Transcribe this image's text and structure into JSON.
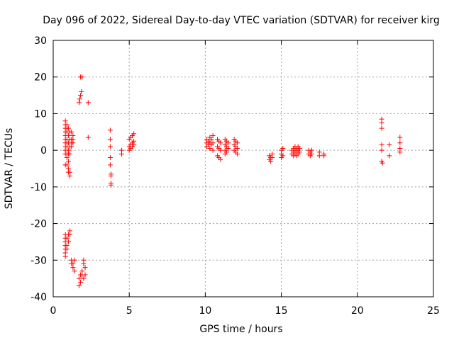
{
  "chart_data": {
    "type": "scatter",
    "title": "Day 096 of 2022, Sidereal Day-to-day VTEC variation (SDTVAR) for receiver kirg",
    "xlabel": "GPS time / hours",
    "ylabel": "SDTVAR / TECUs",
    "xlim": [
      0,
      25
    ],
    "ylim": [
      -40,
      30
    ],
    "xticks": [
      0,
      5,
      10,
      15,
      20,
      25
    ],
    "yticks": [
      -40,
      -30,
      -20,
      -10,
      0,
      10,
      20,
      30
    ],
    "grid": true,
    "marker": "+",
    "color": "#ff0000",
    "series": [
      {
        "name": "SDTVAR",
        "points": [
          [
            0.8,
            8
          ],
          [
            0.8,
            7
          ],
          [
            0.8,
            6
          ],
          [
            0.8,
            5
          ],
          [
            0.8,
            4
          ],
          [
            0.8,
            3
          ],
          [
            0.8,
            2
          ],
          [
            0.8,
            1
          ],
          [
            0.8,
            0
          ],
          [
            0.8,
            -1
          ],
          [
            0.9,
            7
          ],
          [
            0.9,
            6
          ],
          [
            0.9,
            5
          ],
          [
            0.9,
            3
          ],
          [
            0.9,
            2
          ],
          [
            0.9,
            1
          ],
          [
            0.9,
            -1
          ],
          [
            0.9,
            -2
          ],
          [
            1.0,
            6
          ],
          [
            1.0,
            4
          ],
          [
            1.0,
            2
          ],
          [
            1.0,
            0
          ],
          [
            1.0,
            -1
          ],
          [
            1.0,
            -3
          ],
          [
            1.1,
            5
          ],
          [
            1.1,
            3
          ],
          [
            1.1,
            1
          ],
          [
            1.1,
            -1
          ],
          [
            1.2,
            5
          ],
          [
            1.2,
            3
          ],
          [
            1.2,
            2
          ],
          [
            1.2,
            1
          ],
          [
            1.3,
            4
          ],
          [
            1.3,
            3
          ],
          [
            1.3,
            2
          ],
          [
            0.8,
            -4
          ],
          [
            0.9,
            -4
          ],
          [
            1.0,
            -5
          ],
          [
            1.0,
            -6
          ],
          [
            1.1,
            -6
          ],
          [
            1.1,
            -7
          ],
          [
            0.8,
            -23
          ],
          [
            0.8,
            -24
          ],
          [
            0.8,
            -25
          ],
          [
            0.8,
            -26
          ],
          [
            0.8,
            -27
          ],
          [
            0.8,
            -28
          ],
          [
            0.8,
            -29
          ],
          [
            0.9,
            -24
          ],
          [
            0.9,
            -26
          ],
          [
            0.9,
            -27
          ],
          [
            1.0,
            -23
          ],
          [
            1.0,
            -25
          ],
          [
            1.1,
            -22
          ],
          [
            1.1,
            -23
          ],
          [
            1.2,
            -30
          ],
          [
            1.2,
            -31
          ],
          [
            1.3,
            -31
          ],
          [
            1.3,
            -32
          ],
          [
            1.4,
            -30
          ],
          [
            1.4,
            -33
          ],
          [
            1.7,
            13
          ],
          [
            1.75,
            14
          ],
          [
            1.8,
            15
          ],
          [
            1.85,
            16
          ],
          [
            1.8,
            20
          ],
          [
            1.9,
            20
          ],
          [
            1.7,
            -35
          ],
          [
            1.7,
            -37
          ],
          [
            1.8,
            -34
          ],
          [
            1.8,
            -36
          ],
          [
            1.9,
            -33
          ],
          [
            1.9,
            -34
          ],
          [
            2.0,
            -30
          ],
          [
            2.0,
            -31
          ],
          [
            2.0,
            -35
          ],
          [
            2.1,
            -32
          ],
          [
            2.1,
            -34
          ],
          [
            2.3,
            13
          ],
          [
            2.3,
            3.5
          ],
          [
            3.75,
            5.5
          ],
          [
            3.75,
            3
          ],
          [
            3.75,
            1
          ],
          [
            3.75,
            -2
          ],
          [
            3.75,
            -4
          ],
          [
            3.8,
            -6.5
          ],
          [
            3.8,
            -7
          ],
          [
            3.8,
            -9
          ],
          [
            3.8,
            -9.5
          ],
          [
            4.5,
            0
          ],
          [
            4.5,
            -1
          ],
          [
            5.0,
            3
          ],
          [
            5.0,
            1
          ],
          [
            5.0,
            0
          ],
          [
            5.1,
            3.5
          ],
          [
            5.1,
            1.5
          ],
          [
            5.1,
            0.5
          ],
          [
            5.2,
            4
          ],
          [
            5.2,
            2
          ],
          [
            5.2,
            1
          ],
          [
            5.3,
            4.5
          ],
          [
            5.3,
            2.5
          ],
          [
            5.3,
            1.5
          ],
          [
            10.1,
            3
          ],
          [
            10.1,
            2
          ],
          [
            10.1,
            1
          ],
          [
            10.2,
            2.5
          ],
          [
            10.2,
            1.5
          ],
          [
            10.3,
            3.5
          ],
          [
            10.3,
            2
          ],
          [
            10.3,
            0.5
          ],
          [
            10.4,
            3
          ],
          [
            10.4,
            1.5
          ],
          [
            10.5,
            4
          ],
          [
            10.5,
            2
          ],
          [
            10.5,
            0
          ],
          [
            10.8,
            3
          ],
          [
            10.8,
            1
          ],
          [
            10.8,
            -1.5
          ],
          [
            10.9,
            2.5
          ],
          [
            10.9,
            0.5
          ],
          [
            10.9,
            -2
          ],
          [
            11.0,
            2
          ],
          [
            11.0,
            0
          ],
          [
            11.0,
            -2.5
          ],
          [
            11.3,
            3
          ],
          [
            11.3,
            1.5
          ],
          [
            11.3,
            0
          ],
          [
            11.3,
            -1
          ],
          [
            11.4,
            2.5
          ],
          [
            11.4,
            1
          ],
          [
            11.4,
            -0.5
          ],
          [
            11.5,
            2
          ],
          [
            11.5,
            0.5
          ],
          [
            11.9,
            3
          ],
          [
            11.9,
            1.5
          ],
          [
            11.9,
            0
          ],
          [
            12.0,
            2.5
          ],
          [
            12.0,
            1
          ],
          [
            12.0,
            -0.5
          ],
          [
            12.1,
            2
          ],
          [
            12.1,
            0.5
          ],
          [
            12.1,
            -1
          ],
          [
            14.2,
            -1.5
          ],
          [
            14.2,
            -2.5
          ],
          [
            14.3,
            -2
          ],
          [
            14.3,
            -3
          ],
          [
            14.4,
            -1
          ],
          [
            14.4,
            -2
          ],
          [
            15.0,
            0
          ],
          [
            15.0,
            -1
          ],
          [
            15.0,
            -2
          ],
          [
            15.1,
            0.5
          ],
          [
            15.1,
            -1.5
          ],
          [
            15.7,
            0
          ],
          [
            15.7,
            -1
          ],
          [
            15.8,
            0.5
          ],
          [
            15.8,
            -0.5
          ],
          [
            15.8,
            -1.5
          ],
          [
            15.9,
            1
          ],
          [
            15.9,
            0
          ],
          [
            15.9,
            -1
          ],
          [
            16.0,
            0.5
          ],
          [
            16.0,
            -0.5
          ],
          [
            16.0,
            -1.5
          ],
          [
            16.1,
            1
          ],
          [
            16.1,
            0
          ],
          [
            16.1,
            -1
          ],
          [
            16.2,
            0.5
          ],
          [
            16.2,
            -0.5
          ],
          [
            16.8,
            0
          ],
          [
            16.8,
            -1
          ],
          [
            16.9,
            -0.5
          ],
          [
            16.9,
            -1.5
          ],
          [
            17.0,
            0
          ],
          [
            17.0,
            -1
          ],
          [
            17.5,
            -0.5
          ],
          [
            17.5,
            -1.5
          ],
          [
            17.8,
            -1
          ],
          [
            17.8,
            -1.5
          ],
          [
            21.6,
            8.5
          ],
          [
            21.6,
            7.5
          ],
          [
            21.6,
            6
          ],
          [
            21.6,
            1.5
          ],
          [
            21.6,
            0
          ],
          [
            21.6,
            -3
          ],
          [
            21.65,
            -3.5
          ],
          [
            22.1,
            1.5
          ],
          [
            22.1,
            -1.5
          ],
          [
            22.8,
            3.5
          ],
          [
            22.8,
            2
          ],
          [
            22.8,
            0.5
          ],
          [
            22.8,
            -0.5
          ]
        ]
      }
    ]
  }
}
